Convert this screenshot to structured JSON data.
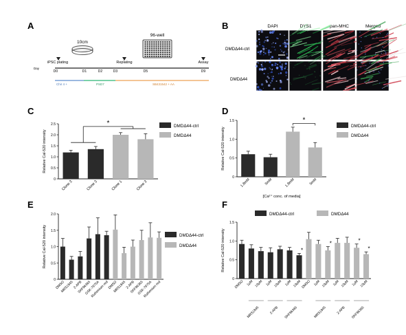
{
  "figure": {
    "panel_letters": [
      "A",
      "B",
      "C",
      "D",
      "E",
      "F"
    ],
    "panel_a": {
      "dish_label": "10cm",
      "plate_label": "96-well",
      "events": [
        "iPSC plating",
        "Replating",
        "Assay"
      ],
      "days": [
        "D0",
        "D1",
        "D2",
        "D3",
        "D5",
        "D9"
      ],
      "row_label": "Day",
      "media": [
        {
          "label": "Chir 4 +",
          "color": "#7aa0d6"
        },
        {
          "label": "PSD7",
          "color": "#4fc28c"
        },
        {
          "label": "SB431542 + AA",
          "color": "#f0b070"
        }
      ],
      "colors": {
        "media_blue": "#7aa0d6",
        "media_green": "#4fc28c",
        "media_orange": "#f0b070"
      }
    },
    "panel_b": {
      "columns": [
        "DAPI",
        "DYS1",
        "pan-MHC",
        "Merged"
      ],
      "rows": [
        "DMDΔ44-ctrl",
        "DMDΔ44"
      ]
    },
    "panel_d_xlabel": "[Ca²⁺ conc. of media]"
  },
  "chart_data": [
    {
      "panel": "C",
      "type": "bar",
      "categories": [
        "Clone 3",
        "Clone 3",
        "Clone 1",
        "Clone 3"
      ],
      "values": [
        1.2,
        1.35,
        2.0,
        1.8
      ],
      "errors": [
        0.1,
        0.12,
        0.1,
        0.25
      ],
      "bar_series": [
        0,
        0,
        1,
        1
      ],
      "legend": [
        "DMDΔ44-ctrl",
        "DMDΔ44"
      ],
      "ylabel": "Relative Cal-520 intensity",
      "ylim": [
        0,
        2.5
      ],
      "yticks": [
        "0",
        "0.5",
        "1.0",
        "1.5",
        "2.0",
        "2.5"
      ],
      "annotation": "*",
      "colors": [
        "#2a2a2a",
        "#b7b7b7"
      ]
    },
    {
      "panel": "D",
      "type": "bar",
      "categories": [
        "1.8mM",
        "5mM",
        "1.8mM",
        "5mM"
      ],
      "values": [
        0.6,
        0.52,
        1.2,
        0.78
      ],
      "errors": [
        0.08,
        0.08,
        0.12,
        0.13
      ],
      "bar_series": [
        0,
        0,
        1,
        1
      ],
      "legend": [
        "DMDΔ44-ctrl",
        "DMDΔ44"
      ],
      "ylabel": "Relative Cal-520 intensity",
      "xlabel": "[Ca²⁺ conc. of media]",
      "ylim": [
        0,
        1.5
      ],
      "yticks": [
        "0",
        "0.5",
        "1.0",
        "1.5"
      ],
      "annotation": "*",
      "colors": [
        "#2a2a2a",
        "#b7b7b7"
      ]
    },
    {
      "panel": "E",
      "type": "bar",
      "categories": [
        "DMSO",
        "MRS1845",
        "2-APB",
        "SKF96365",
        "GSK-7975A",
        "Ruthenium red",
        "DMSO",
        "MRS1845",
        "2-APB",
        "SKF96365",
        "GSK-7975A",
        "Ruthenium red"
      ],
      "values": [
        1.0,
        0.6,
        0.7,
        1.25,
        1.38,
        1.35,
        1.52,
        0.8,
        1.0,
        1.2,
        1.28,
        1.27
      ],
      "errors": [
        0.25,
        0.1,
        0.15,
        0.35,
        0.5,
        0.12,
        0.45,
        0.18,
        0.2,
        0.3,
        0.45,
        0.18
      ],
      "bar_series": [
        0,
        0,
        0,
        0,
        0,
        0,
        1,
        1,
        1,
        1,
        1,
        1
      ],
      "legend": [
        "DMDΔ44-ctrl",
        "DMDΔ44"
      ],
      "ylabel": "Relative Cal-520 intensity",
      "ylim": [
        0,
        2.0
      ],
      "yticks": [
        "0",
        "0.5",
        "1.0",
        "1.5",
        "2.0"
      ],
      "colors": [
        "#2a2a2a",
        "#b7b7b7"
      ]
    },
    {
      "panel": "F",
      "type": "bar",
      "categories": [
        "DMSO",
        "1μM",
        "10μM",
        "1μM",
        "10μM",
        "1μM",
        "10μM",
        "DMSO",
        "1μM",
        "10μM",
        "1μM",
        "10μM",
        "1μM",
        "10μM"
      ],
      "values": [
        0.92,
        0.8,
        0.73,
        0.7,
        0.78,
        0.75,
        0.62,
        1.05,
        0.92,
        0.75,
        0.95,
        0.95,
        0.82,
        0.65
      ],
      "errors": [
        0.1,
        0.1,
        0.1,
        0.12,
        0.08,
        0.08,
        0.05,
        0.18,
        0.1,
        0.1,
        0.12,
        0.15,
        0.1,
        0.06
      ],
      "bar_series": [
        0,
        0,
        0,
        0,
        0,
        0,
        0,
        1,
        1,
        1,
        1,
        1,
        1,
        1
      ],
      "groups": [
        {
          "label": "MRS1845",
          "start": 1,
          "end": 2
        },
        {
          "label": "2-APB",
          "start": 3,
          "end": 4
        },
        {
          "label": "SKF96365",
          "start": 5,
          "end": 6
        },
        {
          "label": "MRS1845",
          "start": 8,
          "end": 9
        },
        {
          "label": "2-APB",
          "start": 10,
          "end": 11
        },
        {
          "label": "SKF96365",
          "start": 12,
          "end": 13
        }
      ],
      "stars": [
        6,
        9,
        12,
        13
      ],
      "legend": [
        "DMDΔ44-ctrl",
        "DMDΔ44"
      ],
      "ylabel": "Relative Cal-520 intensity",
      "ylim": [
        0,
        1.5
      ],
      "yticks": [
        "0",
        "0.5",
        "1.0",
        "1.5"
      ],
      "colors": [
        "#2a2a2a",
        "#b7b7b7"
      ]
    }
  ]
}
